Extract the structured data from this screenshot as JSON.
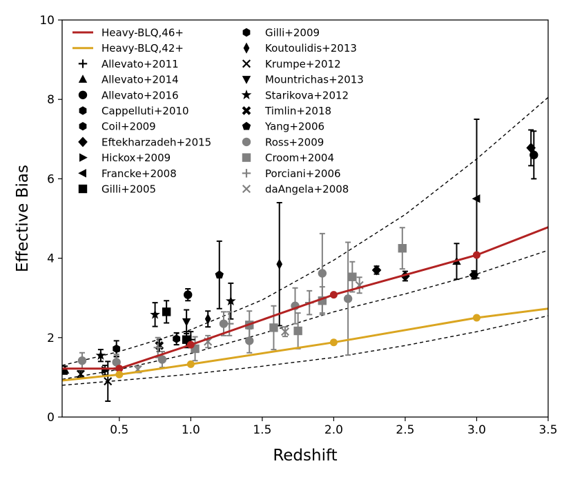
{
  "chart_data": {
    "type": "scatter",
    "xlabel": "Redshift",
    "ylabel": "Effective Bias",
    "xlim": [
      0.1,
      3.5
    ],
    "ylim": [
      0,
      10
    ],
    "xticks": [
      0.5,
      1.0,
      1.5,
      2.0,
      2.5,
      3.0,
      3.5
    ],
    "xtick_labels": [
      "0.5",
      "1.0",
      "1.5",
      "2.0",
      "2.5",
      "3.0",
      "3.5"
    ],
    "yticks": [
      0,
      2,
      4,
      6,
      8,
      10
    ],
    "ytick_labels": [
      "0",
      "2",
      "4",
      "6",
      "8",
      "10"
    ],
    "legend_position": "top-left, two columns",
    "lines": [
      {
        "name": "Heavy-BLQ,46+",
        "color": "#b22222",
        "x": [
          0.1,
          0.5,
          1.0,
          2.0,
          3.0,
          3.5
        ],
        "y": [
          1.22,
          1.22,
          1.82,
          3.08,
          4.08,
          4.78
        ],
        "markers_x": [
          0.5,
          1.0,
          2.0,
          3.0
        ],
        "markers_y": [
          1.22,
          1.82,
          3.08,
          4.08
        ]
      },
      {
        "name": "Heavy-BLQ,42+",
        "color": "#daa520",
        "x": [
          0.1,
          0.5,
          1.0,
          2.0,
          3.0,
          3.5
        ],
        "y": [
          0.92,
          1.07,
          1.33,
          1.88,
          2.5,
          2.73
        ],
        "markers_x": [
          0.5,
          1.0,
          2.0,
          3.0
        ],
        "markers_y": [
          1.07,
          1.33,
          1.88,
          2.5
        ]
      }
    ],
    "dashed_curves": [
      {
        "x": [
          0.1,
          0.5,
          1.0,
          1.5,
          2.0,
          2.5,
          3.0,
          3.5
        ],
        "y": [
          1.3,
          1.65,
          2.2,
          2.95,
          3.95,
          5.1,
          6.5,
          8.05
        ]
      },
      {
        "x": [
          0.1,
          0.5,
          1.0,
          1.5,
          2.0,
          2.5,
          3.0,
          3.5
        ],
        "y": [
          0.95,
          1.2,
          1.6,
          2.1,
          2.65,
          3.1,
          3.6,
          4.2
        ]
      },
      {
        "x": [
          0.1,
          0.5,
          1.0,
          1.5,
          2.0,
          2.5,
          3.0,
          3.5
        ],
        "y": [
          0.8,
          0.92,
          1.08,
          1.28,
          1.5,
          1.8,
          2.15,
          2.55
        ]
      }
    ],
    "series": [
      {
        "name": "Allevato+2011",
        "marker": "plus",
        "color": "#000000",
        "points": [
          {
            "x": 1.0,
            "y": 1.95,
            "err": 0.2
          }
        ]
      },
      {
        "name": "Allevato+2014",
        "marker": "triangle-up",
        "color": "#000000",
        "points": [
          {
            "x": 0.12,
            "y": 1.18,
            "err": 0.1
          },
          {
            "x": 2.86,
            "y": 3.92,
            "err": 0.45
          }
        ]
      },
      {
        "name": "Allevato+2016",
        "marker": "circle",
        "color": "#000000",
        "points": [
          {
            "x": 0.98,
            "y": 3.08,
            "err": 0.15
          },
          {
            "x": 3.4,
            "y": 6.6,
            "err": 0.6
          }
        ]
      },
      {
        "name": "Cappelluti+2010",
        "marker": "hexagon",
        "color": "#000000",
        "points": [
          {
            "x": 0.48,
            "y": 1.38,
            "err": 0.15
          }
        ]
      },
      {
        "name": "Coil+2009",
        "marker": "hexagon",
        "color": "#000000",
        "points": [
          {
            "x": 0.9,
            "y": 1.97,
            "err": 0.15
          }
        ]
      },
      {
        "name": "Eftekharzadeh+2015",
        "marker": "diamond",
        "color": "#000000",
        "points": [
          {
            "x": 2.3,
            "y": 3.7,
            "err": 0.1
          },
          {
            "x": 2.5,
            "y": 3.55,
            "err": 0.12
          },
          {
            "x": 2.98,
            "y": 3.58,
            "err": 0.1
          },
          {
            "x": 3.38,
            "y": 6.78,
            "err": 0.45
          }
        ]
      },
      {
        "name": "Hickox+2009",
        "marker": "triangle-right",
        "color": "#000000",
        "points": [
          {
            "x": 0.4,
            "y": 1.18,
            "err": 0.12
          }
        ]
      },
      {
        "name": "Francke+2008",
        "marker": "triangle-left",
        "color": "#000000",
        "points": [
          {
            "x": 3.0,
            "y": 5.5,
            "err": 2.0
          }
        ]
      },
      {
        "name": "Gilli+2005",
        "marker": "square",
        "color": "#000000",
        "points": [
          {
            "x": 0.83,
            "y": 2.65,
            "err": 0.28
          },
          {
            "x": 0.97,
            "y": 1.95,
            "err": 0.2
          }
        ]
      },
      {
        "name": "Gilli+2009",
        "marker": "hexagon",
        "color": "#000000",
        "points": [
          {
            "x": 0.48,
            "y": 1.72,
            "err": 0.2
          }
        ]
      },
      {
        "name": "Koutoulidis+2013",
        "marker": "thin-diamond",
        "color": "#000000",
        "points": [
          {
            "x": 1.12,
            "y": 2.47,
            "err": 0.2
          },
          {
            "x": 1.62,
            "y": 3.85,
            "err": 1.55
          }
        ]
      },
      {
        "name": "Krumpe+2012",
        "marker": "x",
        "color": "#000000",
        "points": [
          {
            "x": 0.23,
            "y": 1.08,
            "err": 0.08
          },
          {
            "x": 0.42,
            "y": 0.9,
            "err": 0.5
          }
        ]
      },
      {
        "name": "Mountrichas+2013",
        "marker": "triangle-down",
        "color": "#000000",
        "points": [
          {
            "x": 0.97,
            "y": 2.4,
            "err": 0.3
          }
        ]
      },
      {
        "name": "Starikova+2012",
        "marker": "star",
        "color": "#000000",
        "points": [
          {
            "x": 0.37,
            "y": 1.55,
            "err": 0.15
          },
          {
            "x": 0.75,
            "y": 2.58,
            "err": 0.3
          },
          {
            "x": 1.28,
            "y": 2.92,
            "err": 0.45
          }
        ]
      },
      {
        "name": "Timlin+2018",
        "marker": "x-filled",
        "color": "#000000",
        "points": [
          {
            "x": 0.78,
            "y": 1.8,
            "err": 0.15
          }
        ]
      },
      {
        "name": "Yang+2006",
        "marker": "pentagon",
        "color": "#000000",
        "points": [
          {
            "x": 1.2,
            "y": 3.58,
            "err": 0.85
          }
        ]
      },
      {
        "name": "Ross+2009",
        "marker": "circle",
        "color": "#808080",
        "points": [
          {
            "x": 0.24,
            "y": 1.42,
            "err": 0.2
          },
          {
            "x": 0.48,
            "y": 1.38,
            "err": 0.2
          },
          {
            "x": 0.8,
            "y": 1.45,
            "err": 0.2
          },
          {
            "x": 1.23,
            "y": 2.35,
            "err": 0.3
          },
          {
            "x": 1.41,
            "y": 1.92,
            "err": 0.3
          },
          {
            "x": 1.73,
            "y": 2.8,
            "err": 0.45
          },
          {
            "x": 1.92,
            "y": 3.62,
            "err": 1.0
          },
          {
            "x": 2.1,
            "y": 2.98,
            "err": 1.42
          }
        ]
      },
      {
        "name": "Croom+2004",
        "marker": "square",
        "color": "#808080",
        "points": [
          {
            "x": 1.03,
            "y": 1.72,
            "err": 0.3
          },
          {
            "x": 1.41,
            "y": 2.32,
            "err": 0.35
          },
          {
            "x": 1.58,
            "y": 2.25,
            "err": 0.55
          },
          {
            "x": 1.75,
            "y": 2.17,
            "err": 0.45
          },
          {
            "x": 1.92,
            "y": 2.93,
            "err": 0.35
          },
          {
            "x": 2.13,
            "y": 3.53,
            "err": 0.38
          },
          {
            "x": 2.48,
            "y": 4.25,
            "err": 0.52
          }
        ]
      },
      {
        "name": "Porciani+2006",
        "marker": "plus",
        "color": "#808080",
        "points": [
          {
            "x": 0.77,
            "y": 1.75,
            "err": 0.25
          },
          {
            "x": 1.27,
            "y": 2.35,
            "err": 0.3
          },
          {
            "x": 1.83,
            "y": 2.88,
            "err": 0.3
          }
        ]
      },
      {
        "name": "daAngela+2008",
        "marker": "x",
        "color": "#808080",
        "points": [
          {
            "x": 0.63,
            "y": 1.2,
            "err": 0.08
          },
          {
            "x": 1.12,
            "y": 1.9,
            "err": 0.15
          },
          {
            "x": 1.66,
            "y": 2.15,
            "err": 0.12
          },
          {
            "x": 2.18,
            "y": 3.32,
            "err": 0.2
          }
        ]
      }
    ]
  }
}
